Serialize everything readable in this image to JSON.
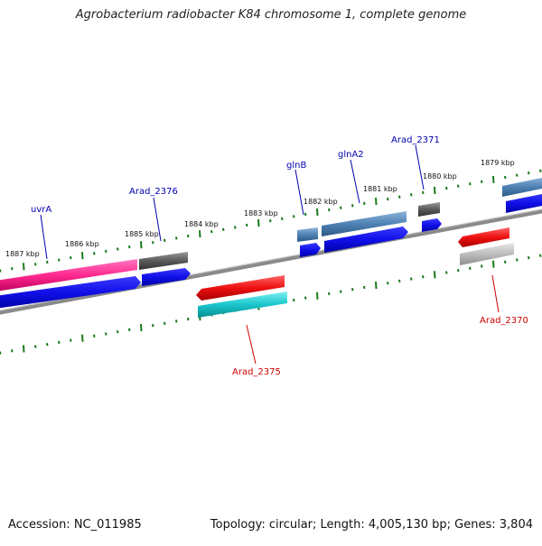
{
  "title": "Agrobacterium radiobacter K84 chromosome 1, complete genome",
  "footer": {
    "accession": "Accession: NC_011985",
    "summary": "Topology: circular; Length: 4,005,130 bp; Genes: 3,804"
  },
  "ticks": [
    "1887 kbp",
    "1886 kbp",
    "1885 kbp",
    "1884 kbp",
    "1883 kbp",
    "1882 kbp",
    "1881 kbp",
    "1880 kbp",
    "1879 kbp"
  ],
  "gene_labels": {
    "uvrA": "uvrA",
    "arad2376": "Arad_2376",
    "glnB": "glnB",
    "glnA2": "glnA2",
    "arad2371": "Arad_2371",
    "arad2375": "Arad_2375",
    "arad2370": "Arad_2370"
  },
  "colors": {
    "label_blue": "#0000b0",
    "label_red": "#cc0000",
    "tick_green": "#1a7a1a",
    "backbone": "#808080",
    "cds_blue": "#1414e6",
    "pink": "#ff3399",
    "steel": "#4f82b4",
    "dark_grey": "#5a5a5a",
    "red": "#ee1111",
    "cyan": "#19c6cc",
    "light_grey": "#b5b5b5"
  }
}
